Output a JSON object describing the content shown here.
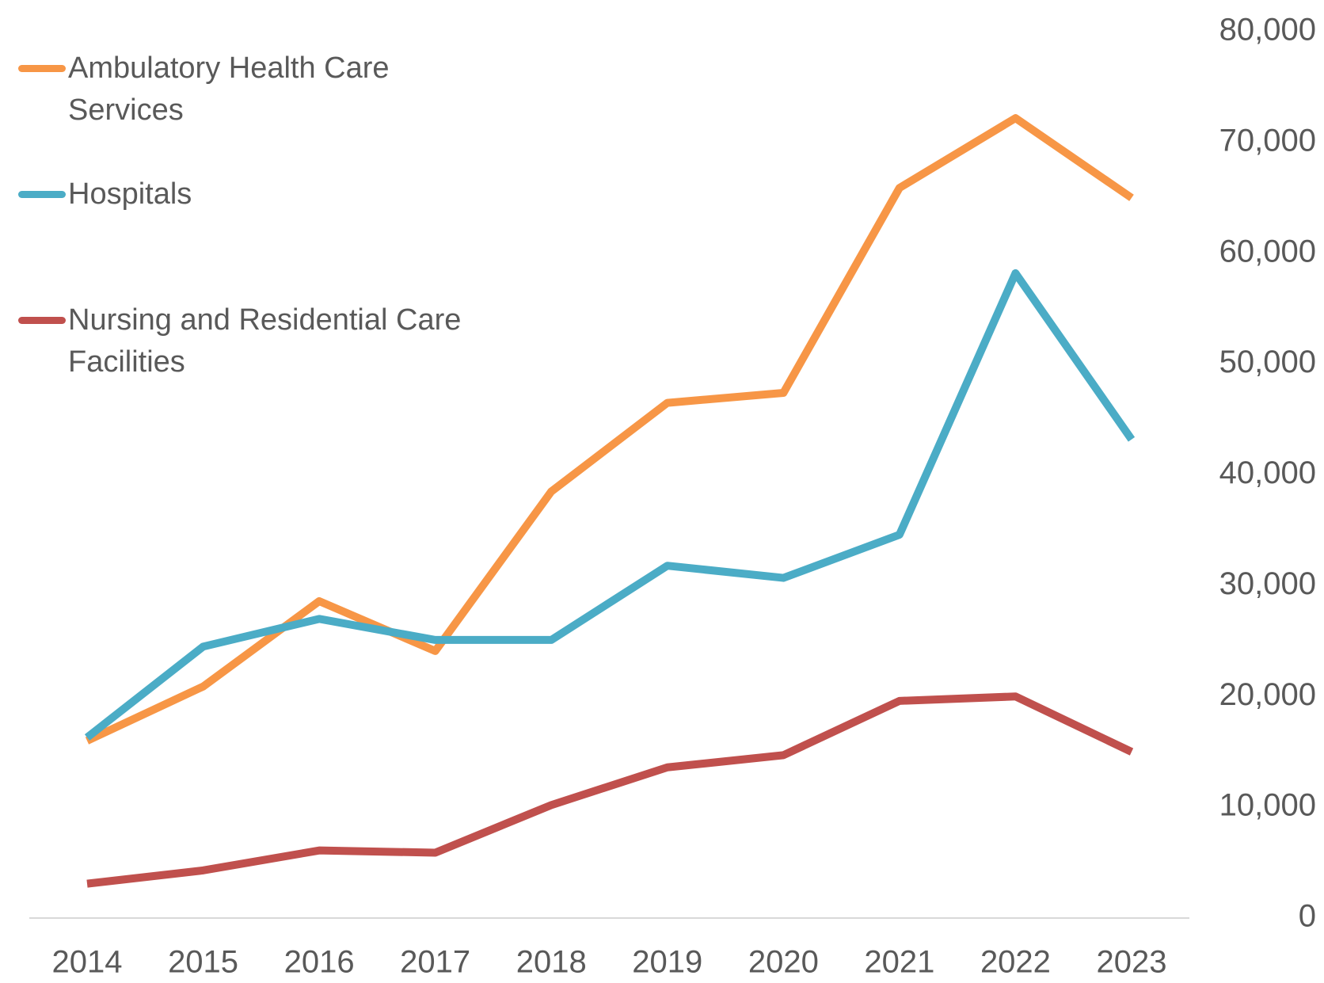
{
  "chart_data": {
    "type": "line",
    "categories": [
      "2014",
      "2015",
      "2016",
      "2017",
      "2018",
      "2019",
      "2020",
      "2021",
      "2022",
      "2023"
    ],
    "series": [
      {
        "name": "Ambulatory Health Care Services",
        "color": "#f79646",
        "values": [
          16000,
          20900,
          28600,
          24100,
          38500,
          46500,
          47400,
          65900,
          72200,
          65000
        ]
      },
      {
        "name": "Hospitals",
        "color": "#4bacc6",
        "values": [
          16300,
          24500,
          27000,
          25100,
          25100,
          31800,
          30700,
          34600,
          58200,
          43200
        ]
      },
      {
        "name": "Nursing and Residential Care Facilities",
        "color": "#c0504d",
        "values": [
          3100,
          4300,
          6100,
          5900,
          10200,
          13600,
          14700,
          19600,
          20000,
          15000
        ]
      }
    ],
    "ylim": [
      0,
      80000
    ],
    "yticks": [
      {
        "value": 0,
        "label": "0"
      },
      {
        "value": 10000,
        "label": "10,000"
      },
      {
        "value": 20000,
        "label": "20,000"
      },
      {
        "value": 30000,
        "label": "30,000"
      },
      {
        "value": 40000,
        "label": "40,000"
      },
      {
        "value": 50000,
        "label": "50,000"
      },
      {
        "value": 60000,
        "label": "60,000"
      },
      {
        "value": 70000,
        "label": "70,000"
      },
      {
        "value": 80000,
        "label": "80,000"
      }
    ],
    "legend": "upper left"
  }
}
